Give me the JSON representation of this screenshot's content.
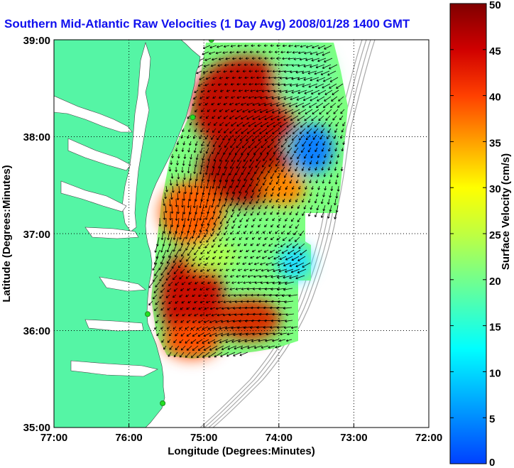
{
  "map": {
    "title": "Southern Mid-Atlantic Raw Velocities (1 Day Avg) 2008/01/28 1400 GMT",
    "xlabel": "Longitude (Degrees:Minutes)",
    "ylabel": "Latitude (Degrees:Minutes)",
    "x_ticks": [
      "77:00",
      "76:00",
      "75:00",
      "74:00",
      "73:00",
      "72:00"
    ],
    "y_ticks": [
      "39:00",
      "38:00",
      "37:00",
      "36:00",
      "35:00"
    ],
    "colors": {
      "land": "#55f5a5",
      "water": "#ffffff",
      "bathymetry": "#a8a8a8",
      "title": "#1010ee",
      "site_marker": "#22e022"
    }
  },
  "colorbar": {
    "label": "Surface Velocity (cm/s)",
    "ticks": [
      "0",
      "5",
      "10",
      "15",
      "20",
      "25",
      "30",
      "35",
      "40",
      "45",
      "50"
    ],
    "min": 0,
    "max": 50,
    "colormap": "jet"
  },
  "chart_data": {
    "type": "heatmap",
    "x_range_deg_west": [
      77,
      72
    ],
    "y_range_deg_north": [
      35,
      39
    ],
    "grid": true,
    "velocity_units": "cm/s",
    "site_markers": [
      {
        "lon": -74.9,
        "lat": 39.0
      },
      {
        "lon": -75.15,
        "lat": 38.2
      },
      {
        "lon": -75.75,
        "lat": 36.17
      },
      {
        "lon": -75.55,
        "lat": 35.25
      }
    ]
  }
}
